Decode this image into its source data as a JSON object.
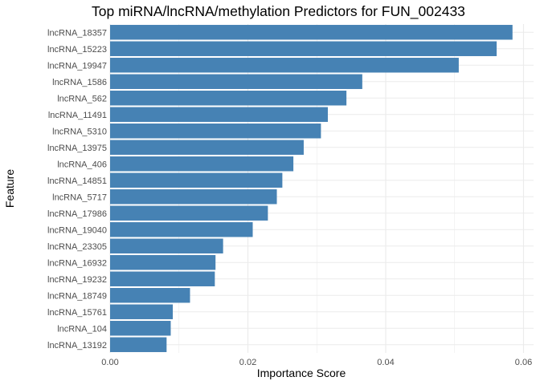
{
  "chart_data": {
    "type": "bar",
    "orientation": "horizontal",
    "title": "Top miRNA/lncRNA/methylation Predictors for FUN_002433",
    "xlabel": "Importance Score",
    "ylabel": "Feature",
    "xlim": [
      0,
      0.06
    ],
    "x_ticks": [
      "0.00",
      "0.02",
      "0.04",
      "0.06"
    ],
    "grid": true,
    "bar_color": "#4682B4",
    "categories": [
      "lncRNA_18357",
      "lncRNA_15223",
      "lncRNA_19947",
      "lncRNA_1586",
      "lncRNA_562",
      "lncRNA_11491",
      "lncRNA_5310",
      "lncRNA_13975",
      "lncRNA_406",
      "lncRNA_14851",
      "lncRNA_5717",
      "lncRNA_17986",
      "lncRNA_19040",
      "lncRNA_23305",
      "lncRNA_16932",
      "lncRNA_19232",
      "lncRNA_18749",
      "lncRNA_15761",
      "lncRNA_104",
      "lncRNA_13192"
    ],
    "values": [
      0.0584,
      0.0561,
      0.0506,
      0.0366,
      0.0343,
      0.0316,
      0.0306,
      0.0281,
      0.0266,
      0.025,
      0.0242,
      0.0229,
      0.0207,
      0.0164,
      0.0153,
      0.0152,
      0.0116,
      0.0091,
      0.0088,
      0.0082
    ]
  }
}
